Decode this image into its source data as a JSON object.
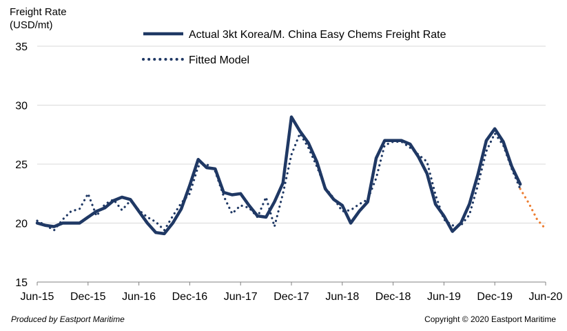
{
  "chart_data": {
    "type": "line",
    "ylabel_lines": [
      "Freight Rate",
      "(USD/mt)"
    ],
    "ylim": [
      15,
      35
    ],
    "yticks": [
      15,
      20,
      25,
      30,
      35
    ],
    "xtick_labels": [
      "Jun-15",
      "Dec-15",
      "Jun-16",
      "Dec-16",
      "Jun-17",
      "Dec-17",
      "Jun-18",
      "Dec-18",
      "Jun-19",
      "Dec-19",
      "Jun-20"
    ],
    "grid": true,
    "legend_position": "top",
    "series": [
      {
        "name": "Actual 3kt Korea/M. China Easy Chems Freight Rate",
        "style": "solid",
        "color": "#1f3864",
        "values": [
          [
            "2015-06",
            20.0
          ],
          [
            "2015-07",
            19.8
          ],
          [
            "2015-08",
            19.7
          ],
          [
            "2015-09",
            20.0
          ],
          [
            "2015-10",
            20.0
          ],
          [
            "2015-11",
            20.0
          ],
          [
            "2015-12",
            20.5
          ],
          [
            "2016-01",
            21.0
          ],
          [
            "2016-02",
            21.3
          ],
          [
            "2016-03",
            21.9
          ],
          [
            "2016-04",
            22.2
          ],
          [
            "2016-05",
            22.0
          ],
          [
            "2016-06",
            21.0
          ],
          [
            "2016-07",
            20.0
          ],
          [
            "2016-08",
            19.2
          ],
          [
            "2016-09",
            19.1
          ],
          [
            "2016-10",
            20.0
          ],
          [
            "2016-11",
            21.2
          ],
          [
            "2016-12",
            23.2
          ],
          [
            "2017-01",
            25.4
          ],
          [
            "2017-02",
            24.7
          ],
          [
            "2017-03",
            24.6
          ],
          [
            "2017-04",
            22.6
          ],
          [
            "2017-05",
            22.4
          ],
          [
            "2017-06",
            22.5
          ],
          [
            "2017-07",
            21.5
          ],
          [
            "2017-08",
            20.6
          ],
          [
            "2017-09",
            20.5
          ],
          [
            "2017-10",
            21.8
          ],
          [
            "2017-11",
            23.4
          ],
          [
            "2017-12",
            29.0
          ],
          [
            "2018-01",
            27.8
          ],
          [
            "2018-02",
            26.8
          ],
          [
            "2018-03",
            25.2
          ],
          [
            "2018-04",
            22.9
          ],
          [
            "2018-05",
            22.0
          ],
          [
            "2018-06",
            21.5
          ],
          [
            "2018-07",
            20.0
          ],
          [
            "2018-08",
            21.0
          ],
          [
            "2018-09",
            21.8
          ],
          [
            "2018-10",
            25.5
          ],
          [
            "2018-11",
            27.0
          ],
          [
            "2018-12",
            27.0
          ],
          [
            "2019-01",
            27.0
          ],
          [
            "2019-02",
            26.7
          ],
          [
            "2019-03",
            25.6
          ],
          [
            "2019-04",
            24.2
          ],
          [
            "2019-05",
            21.6
          ],
          [
            "2019-06",
            20.6
          ],
          [
            "2019-07",
            19.3
          ],
          [
            "2019-08",
            20.0
          ],
          [
            "2019-09",
            21.6
          ],
          [
            "2019-10",
            24.1
          ],
          [
            "2019-11",
            27.0
          ],
          [
            "2019-12",
            28.0
          ],
          [
            "2020-01",
            26.9
          ],
          [
            "2020-02",
            24.8
          ],
          [
            "2020-03",
            23.3
          ]
        ]
      },
      {
        "name": "Fitted Model",
        "style": "dotted",
        "color": "#1f3864",
        "values": [
          [
            "2015-06",
            20.2
          ],
          [
            "2015-07",
            19.8
          ],
          [
            "2015-08",
            19.4
          ],
          [
            "2015-09",
            20.3
          ],
          [
            "2015-10",
            21.0
          ],
          [
            "2015-11",
            21.2
          ],
          [
            "2015-12",
            22.5
          ],
          [
            "2016-01",
            20.6
          ],
          [
            "2016-02",
            21.6
          ],
          [
            "2016-03",
            22.0
          ],
          [
            "2016-04",
            21.1
          ],
          [
            "2016-05",
            21.9
          ],
          [
            "2016-06",
            21.1
          ],
          [
            "2016-07",
            20.5
          ],
          [
            "2016-08",
            20.1
          ],
          [
            "2016-09",
            19.4
          ],
          [
            "2016-10",
            20.6
          ],
          [
            "2016-11",
            21.7
          ],
          [
            "2016-12",
            22.5
          ],
          [
            "2017-01",
            24.8
          ],
          [
            "2017-02",
            25.0
          ],
          [
            "2017-03",
            24.4
          ],
          [
            "2017-04",
            22.3
          ],
          [
            "2017-05",
            20.8
          ],
          [
            "2017-06",
            21.5
          ],
          [
            "2017-07",
            21.3
          ],
          [
            "2017-08",
            20.5
          ],
          [
            "2017-09",
            22.2
          ],
          [
            "2017-10",
            19.7
          ],
          [
            "2017-11",
            22.5
          ],
          [
            "2017-12",
            25.8
          ],
          [
            "2018-01",
            27.6
          ],
          [
            "2018-02",
            26.4
          ],
          [
            "2018-03",
            24.8
          ],
          [
            "2018-04",
            23.0
          ],
          [
            "2018-05",
            22.1
          ],
          [
            "2018-06",
            21.0
          ],
          [
            "2018-07",
            21.1
          ],
          [
            "2018-08",
            21.6
          ],
          [
            "2018-09",
            22.0
          ],
          [
            "2018-10",
            23.8
          ],
          [
            "2018-11",
            26.6
          ],
          [
            "2018-12",
            26.9
          ],
          [
            "2019-01",
            26.9
          ],
          [
            "2019-02",
            26.4
          ],
          [
            "2019-03",
            25.8
          ],
          [
            "2019-04",
            25.2
          ],
          [
            "2019-05",
            22.4
          ],
          [
            "2019-06",
            20.3
          ],
          [
            "2019-07",
            19.8
          ],
          [
            "2019-08",
            19.8
          ],
          [
            "2019-09",
            20.7
          ],
          [
            "2019-10",
            23.2
          ],
          [
            "2019-11",
            26.1
          ],
          [
            "2019-12",
            27.6
          ],
          [
            "2020-01",
            26.6
          ],
          [
            "2020-02",
            24.6
          ],
          [
            "2020-03",
            22.9
          ]
        ]
      },
      {
        "name": "",
        "style": "dotted",
        "color": "#ed7d31",
        "values": [
          [
            "2020-03",
            22.9
          ],
          [
            "2020-04",
            21.7
          ],
          [
            "2020-05",
            20.3
          ],
          [
            "2020-06",
            19.5
          ]
        ]
      }
    ]
  },
  "footer": {
    "produced_by": "Produced by Eastport Maritime",
    "copyright": "Copyright © 2020 Eastport Maritime"
  }
}
